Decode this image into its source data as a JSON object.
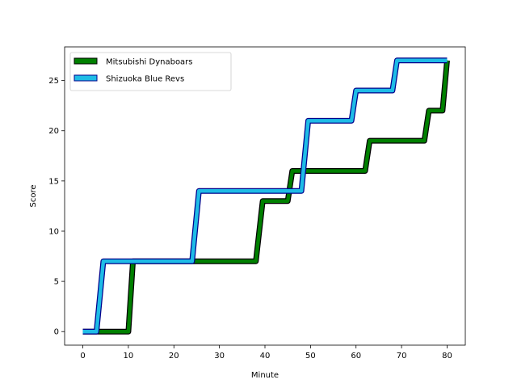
{
  "chart_data": {
    "type": "line",
    "title": "",
    "xlabel": "Minute",
    "ylabel": "Score",
    "xlim": [
      -4,
      84
    ],
    "ylim": [
      -1.35,
      28.35
    ],
    "xticks": [
      0,
      10,
      20,
      30,
      40,
      50,
      60,
      70,
      80
    ],
    "yticks": [
      0,
      5,
      10,
      15,
      20,
      25
    ],
    "legend_position": "upper-left",
    "series": [
      {
        "name": "Mitsubishi Dynaboars",
        "color": "#008000",
        "edge_color": "#000000",
        "x": [
          0,
          10,
          11,
          38,
          39.5,
          45,
          46,
          62,
          63,
          75,
          76,
          79,
          80
        ],
        "y": [
          0,
          0,
          7,
          7,
          13,
          13,
          16,
          16,
          19,
          19,
          22,
          22,
          27
        ]
      },
      {
        "name": "Shizuoka Blue Revs",
        "color": "#1ebce6",
        "edge_color": "#00008b",
        "x": [
          0,
          3,
          4.5,
          24,
          25.5,
          48,
          49.5,
          59,
          60,
          68,
          69,
          80
        ],
        "y": [
          0,
          0,
          7,
          7,
          14,
          14,
          21,
          21,
          24,
          24,
          27,
          27
        ]
      }
    ]
  }
}
